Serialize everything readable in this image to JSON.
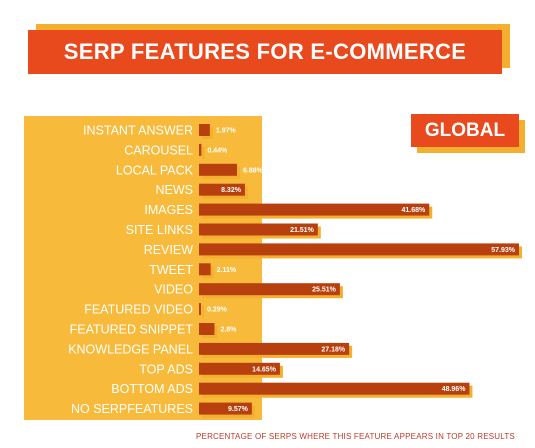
{
  "title": "SERP FEATURES FOR E-COMMERCE",
  "badge": "GLOBAL",
  "footnote": "PERCENTAGE OF SERPS WHERE THIS FEATURE APPEARS IN TOP 20 RESULTS",
  "colors": {
    "bar": "#B8400F",
    "bar_shadow": "#F3B02E",
    "title_bg": "#E8491D",
    "panel": "#F7BA3A"
  },
  "chart_data": {
    "type": "bar",
    "orientation": "horizontal",
    "categories": [
      "INSTANT ANSWER",
      "CAROUSEL",
      "LOCAL PACK",
      "NEWS",
      "IMAGES",
      "SITE LINKS",
      "REVIEW",
      "TWEET",
      "VIDEO",
      "FEATURED VIDEO",
      "FEATURED SNIPPET",
      "KNOWLEDGE PANEL",
      "TOP ADS",
      "BOTTOM ADS",
      "NO SERPFEATURES"
    ],
    "values": [
      1.97,
      0.44,
      6.88,
      8.32,
      41.68,
      21.51,
      57.93,
      2.11,
      25.51,
      0.29,
      2.8,
      27.18,
      14.65,
      48.96,
      9.57
    ],
    "value_labels": [
      "1.97%",
      "0.44%",
      "6.88%",
      "8.32%",
      "41.68%",
      "21.51%",
      "57.93%",
      "2.11%",
      "25.51%",
      "0.29%",
      "2.8%",
      "27.18%",
      "14.65%",
      "48.96%",
      "9.57%"
    ],
    "xlabel": "PERCENTAGE OF SERPS WHERE THIS FEATURE APPEARS IN TOP 20 RESULTS",
    "xlim": [
      0,
      60
    ],
    "grid": false
  }
}
